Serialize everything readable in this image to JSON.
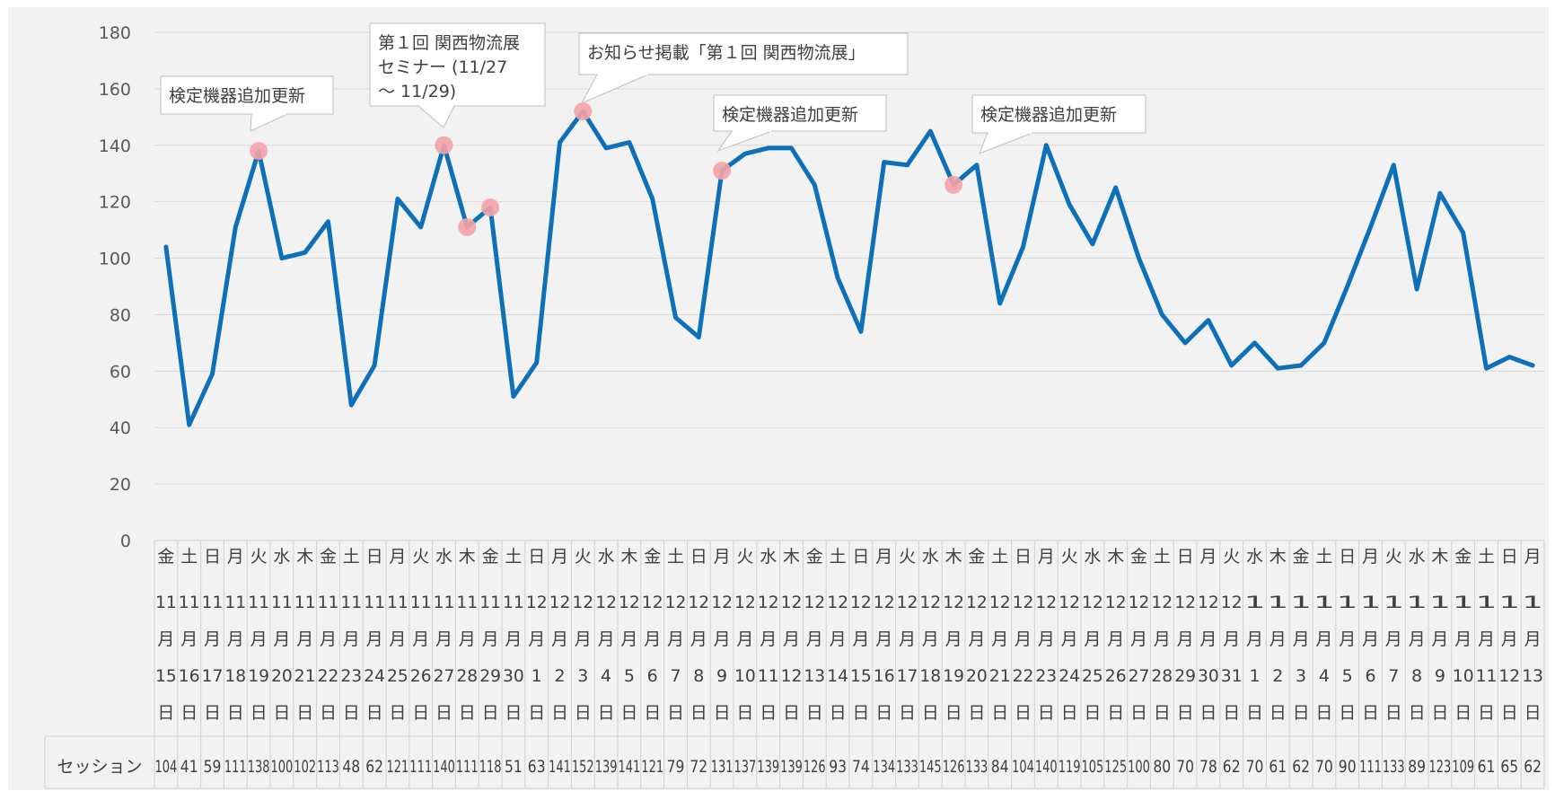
{
  "chart_data": {
    "type": "line",
    "ylim": [
      0,
      180
    ],
    "y_ticks": [
      "0",
      "20",
      "40",
      "60",
      "80",
      "100",
      "120",
      "140",
      "160",
      "180"
    ],
    "grid": true,
    "legend": "data table below",
    "line_color": "#0e70b8",
    "highlight_color": "#f4a3a8",
    "weekdays": [
      "金",
      "土",
      "日",
      "月",
      "火",
      "水",
      "木",
      "金",
      "土",
      "日",
      "月",
      "火",
      "水",
      "木",
      "金",
      "土",
      "日",
      "月",
      "火",
      "水",
      "木",
      "金",
      "土",
      "日",
      "月",
      "火",
      "水",
      "木",
      "金",
      "土",
      "日",
      "月",
      "火",
      "水",
      "木",
      "金",
      "土",
      "日",
      "月",
      "火",
      "水",
      "木",
      "金",
      "土",
      "日",
      "月",
      "火",
      "水",
      "木",
      "金",
      "土",
      "日",
      "月",
      "火",
      "水",
      "木",
      "金",
      "土",
      "日",
      "月"
    ],
    "months": [
      "11",
      "11",
      "11",
      "11",
      "11",
      "11",
      "11",
      "11",
      "11",
      "11",
      "11",
      "11",
      "11",
      "11",
      "11",
      "11",
      "12",
      "12",
      "12",
      "12",
      "12",
      "12",
      "12",
      "12",
      "12",
      "12",
      "12",
      "12",
      "12",
      "12",
      "12",
      "12",
      "12",
      "12",
      "12",
      "12",
      "12",
      "12",
      "12",
      "12",
      "12",
      "12",
      "12",
      "12",
      "12",
      "12",
      "12",
      "1",
      "1",
      "1",
      "1",
      "1",
      "1",
      "1",
      "1",
      "1",
      "1",
      "1",
      "1",
      "1"
    ],
    "month_suffix": "月",
    "days": [
      "15",
      "16",
      "17",
      "18",
      "19",
      "20",
      "21",
      "22",
      "23",
      "24",
      "25",
      "26",
      "27",
      "28",
      "29",
      "30",
      "1",
      "2",
      "3",
      "4",
      "5",
      "6",
      "7",
      "8",
      "9",
      "10",
      "11",
      "12",
      "13",
      "14",
      "15",
      "16",
      "17",
      "18",
      "19",
      "20",
      "21",
      "22",
      "23",
      "24",
      "25",
      "26",
      "27",
      "28",
      "29",
      "30",
      "31",
      "1",
      "2",
      "3",
      "4",
      "5",
      "6",
      "7",
      "8",
      "9",
      "10",
      "11",
      "12",
      "13"
    ],
    "day_suffix": "日",
    "series": [
      {
        "name": "セッション",
        "values": [
          104,
          41,
          59,
          111,
          138,
          100,
          102,
          113,
          48,
          62,
          121,
          111,
          140,
          111,
          118,
          51,
          63,
          141,
          152,
          139,
          141,
          121,
          79,
          72,
          131,
          137,
          139,
          139,
          126,
          93,
          74,
          134,
          133,
          145,
          126,
          133,
          84,
          104,
          140,
          119,
          105,
          125,
          100,
          80,
          70,
          78,
          62,
          70,
          61,
          62,
          70,
          90,
          111,
          133,
          89,
          123,
          109,
          61,
          65,
          62
        ]
      }
    ],
    "highlight_indices": [
      4,
      12,
      13,
      14,
      18,
      24,
      34
    ],
    "annotations": [
      {
        "lines": [
          "検定機器追加更新"
        ],
        "point_index": 4
      },
      {
        "lines": [
          "第１回 関西物流展",
          "セミナー (11/27",
          "～ 11/29)"
        ],
        "point_index": 12
      },
      {
        "lines": [
          "お知らせ掲載「第１回 関西物流展」"
        ],
        "point_index": 18
      },
      {
        "lines": [
          "検定機器追加更新"
        ],
        "point_index": 24
      },
      {
        "lines": [
          "検定機器追加更新"
        ],
        "point_index": 34
      }
    ]
  }
}
